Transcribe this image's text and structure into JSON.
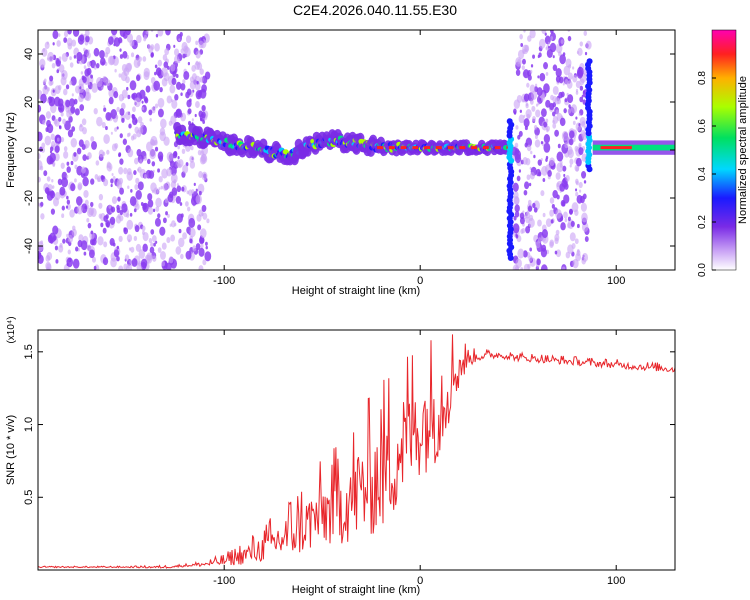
{
  "figure": {
    "title": "C2E4.2026.040.11.55.E30"
  },
  "colors": {
    "scatter_purple": "#8a3cf0",
    "scatter_light": "#c9a2f5",
    "snr_line": "#e8262b",
    "axis": "#000000"
  },
  "chart_data": [
    {
      "type": "heatmap",
      "title": "C2E4.2026.040.11.55.E30",
      "xlabel": "Height of straight line (km)",
      "ylabel": "Frequency (Hz)",
      "xlim": [
        -195,
        130
      ],
      "ylim": [
        -50,
        50
      ],
      "xticks": [
        -100,
        0,
        100
      ],
      "yticks": [
        -40,
        -20,
        0,
        20,
        40
      ],
      "colorbar": {
        "label": "Normalized spectral amplitude",
        "range": [
          0,
          1
        ],
        "ticks": [
          0.0,
          0.2,
          0.4,
          0.6,
          0.8
        ],
        "tick_labels": [
          "0.0",
          "0.2",
          "0.4",
          "0.6",
          "0.8"
        ]
      },
      "noise_regions": [
        {
          "x": [
            -195,
            -108
          ],
          "y": [
            -50,
            50
          ]
        },
        {
          "x": [
            48,
            86
          ],
          "y": [
            -50,
            50
          ]
        }
      ],
      "ridge": {
        "x": [
          -124,
          -115,
          -105,
          -95,
          -85,
          -75,
          -65,
          -58,
          -50,
          -42,
          -35,
          -28,
          -20,
          -10,
          0,
          10,
          20,
          30,
          40,
          44
        ],
        "y": [
          7,
          6,
          4,
          2,
          1,
          -1,
          -2,
          2,
          3,
          4,
          3,
          2,
          1,
          1,
          1,
          1,
          1,
          1,
          1,
          1
        ]
      },
      "spikes": [
        {
          "x": 46,
          "y": [
            -45,
            12
          ]
        },
        {
          "x": 86,
          "y": [
            -8,
            37
          ]
        }
      ],
      "tail": {
        "x": [
          88,
          130
        ],
        "y": 1
      }
    },
    {
      "type": "line",
      "xlabel": "Height of straight line (km)",
      "ylabel": "SNR (10 * v/v)",
      "multiplier_label": "(x10⁴)",
      "xlim": [
        -195,
        130
      ],
      "ylim": [
        0,
        1.65
      ],
      "xticks": [
        -100,
        0,
        100
      ],
      "yticks": [
        0.5,
        1.0,
        1.5
      ],
      "ytick_labels": [
        "0.5",
        "1.0",
        "1.5"
      ],
      "series": [
        {
          "name": "SNR",
          "x": [
            -195,
            -170,
            -150,
            -130,
            -120,
            -110,
            -100,
            -90,
            -80,
            -70,
            -60,
            -50,
            -40,
            -30,
            -20,
            -15,
            -10,
            -5,
            0,
            5,
            10,
            15,
            20,
            25,
            30,
            40,
            50,
            60,
            70,
            80,
            90,
            100,
            110,
            120,
            130
          ],
          "values": [
            0.02,
            0.02,
            0.02,
            0.02,
            0.03,
            0.04,
            0.06,
            0.1,
            0.15,
            0.22,
            0.3,
            0.38,
            0.45,
            0.55,
            0.65,
            0.75,
            0.85,
            0.95,
            1.0,
            1.05,
            1.15,
            1.3,
            1.4,
            1.45,
            1.47,
            1.48,
            1.46,
            1.45,
            1.44,
            1.43,
            1.42,
            1.41,
            1.4,
            1.39,
            1.38
          ],
          "spread": [
            0.005,
            0.005,
            0.005,
            0.01,
            0.01,
            0.02,
            0.04,
            0.08,
            0.12,
            0.2,
            0.25,
            0.3,
            0.35,
            0.45,
            0.5,
            0.55,
            0.5,
            0.5,
            0.45,
            0.45,
            0.5,
            0.35,
            0.2,
            0.06,
            0.04,
            0.03,
            0.03,
            0.03,
            0.03,
            0.03,
            0.03,
            0.03,
            0.03,
            0.03,
            0.03
          ]
        }
      ]
    }
  ]
}
